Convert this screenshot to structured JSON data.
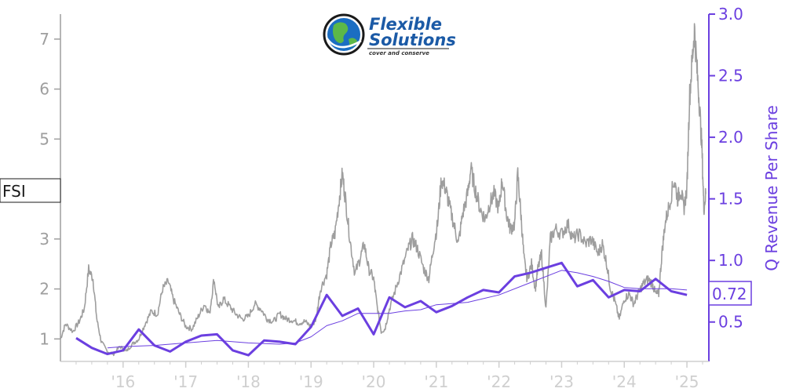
{
  "logo": {
    "line1": "Flexible",
    "line2": "Solutions",
    "tagline": "cover and conserve"
  },
  "colors": {
    "price": "#9e9e9e",
    "revenue": "#6b3fe0",
    "revenue_trend": "#6b3fe0",
    "x_ticks": "#cfcfcf"
  },
  "chart_data": {
    "type": "line",
    "ticker": "FSI",
    "price_marker_label": "FSI",
    "last_revenue_label": "0.72",
    "y_left": {
      "ticks": [
        1,
        2,
        3,
        4,
        5,
        6,
        7
      ],
      "tick_labels": [
        "1",
        "2",
        "3",
        "",
        "5",
        "6",
        "7"
      ],
      "range": [
        0.55,
        7.5
      ]
    },
    "y_right": {
      "label": "Q Revenue Per Share",
      "ticks": [
        0.5,
        1.0,
        1.5,
        2.0,
        2.5,
        3.0
      ],
      "tick_labels": [
        "0.5",
        "1.0",
        "1.5",
        "2.0",
        "2.5",
        "3.0"
      ],
      "range": [
        0.18,
        3.0
      ]
    },
    "x_axis": {
      "tick_labels": [
        "'16",
        "'17",
        "'18",
        "'19",
        "'20",
        "'21",
        "'22",
        "'23",
        "'24",
        "'25"
      ],
      "tick_years": [
        2016,
        2017,
        2018,
        2019,
        2020,
        2021,
        2022,
        2023,
        2024,
        2025
      ],
      "range": [
        2015.0,
        2025.35
      ]
    },
    "series": [
      {
        "role": "price",
        "points": [
          [
            2015.0,
            1.0
          ],
          [
            2015.08,
            1.3
          ],
          [
            2015.2,
            1.15
          ],
          [
            2015.3,
            1.35
          ],
          [
            2015.38,
            1.6
          ],
          [
            2015.45,
            2.4
          ],
          [
            2015.52,
            2.2
          ],
          [
            2015.58,
            1.4
          ],
          [
            2015.65,
            0.95
          ],
          [
            2015.75,
            0.75
          ],
          [
            2015.85,
            0.7
          ],
          [
            2015.95,
            0.85
          ],
          [
            2016.05,
            0.75
          ],
          [
            2016.15,
            0.9
          ],
          [
            2016.25,
            1.0
          ],
          [
            2016.35,
            1.3
          ],
          [
            2016.45,
            1.55
          ],
          [
            2016.55,
            1.5
          ],
          [
            2016.63,
            2.0
          ],
          [
            2016.72,
            2.15
          ],
          [
            2016.8,
            1.8
          ],
          [
            2016.9,
            1.5
          ],
          [
            2017.0,
            1.25
          ],
          [
            2017.1,
            1.2
          ],
          [
            2017.2,
            1.45
          ],
          [
            2017.3,
            1.7
          ],
          [
            2017.38,
            1.5
          ],
          [
            2017.45,
            2.2
          ],
          [
            2017.52,
            1.6
          ],
          [
            2017.6,
            1.8
          ],
          [
            2017.7,
            1.65
          ],
          [
            2017.8,
            1.5
          ],
          [
            2017.9,
            1.4
          ],
          [
            2018.0,
            1.45
          ],
          [
            2018.1,
            1.7
          ],
          [
            2018.2,
            1.6
          ],
          [
            2018.3,
            1.4
          ],
          [
            2018.4,
            1.35
          ],
          [
            2018.5,
            1.5
          ],
          [
            2018.6,
            1.4
          ],
          [
            2018.7,
            1.38
          ],
          [
            2018.8,
            1.32
          ],
          [
            2018.9,
            1.35
          ],
          [
            2019.0,
            1.25
          ],
          [
            2019.08,
            1.4
          ],
          [
            2019.15,
            2.0
          ],
          [
            2019.25,
            2.3
          ],
          [
            2019.32,
            2.9
          ],
          [
            2019.38,
            3.1
          ],
          [
            2019.45,
            3.8
          ],
          [
            2019.5,
            4.3
          ],
          [
            2019.55,
            3.8
          ],
          [
            2019.62,
            3.0
          ],
          [
            2019.7,
            2.3
          ],
          [
            2019.78,
            2.6
          ],
          [
            2019.85,
            2.9
          ],
          [
            2019.92,
            2.4
          ],
          [
            2020.0,
            2.2
          ],
          [
            2020.05,
            1.7
          ],
          [
            2020.12,
            1.15
          ],
          [
            2020.18,
            1.2
          ],
          [
            2020.25,
            1.6
          ],
          [
            2020.35,
            2.0
          ],
          [
            2020.45,
            2.4
          ],
          [
            2020.55,
            2.8
          ],
          [
            2020.62,
            3.0
          ],
          [
            2020.7,
            2.8
          ],
          [
            2020.8,
            2.4
          ],
          [
            2020.88,
            2.2
          ],
          [
            2020.95,
            2.8
          ],
          [
            2021.02,
            3.3
          ],
          [
            2021.08,
            4.2
          ],
          [
            2021.15,
            4.0
          ],
          [
            2021.2,
            3.7
          ],
          [
            2021.28,
            3.3
          ],
          [
            2021.35,
            2.9
          ],
          [
            2021.42,
            3.5
          ],
          [
            2021.5,
            3.9
          ],
          [
            2021.55,
            4.4
          ],
          [
            2021.62,
            4.0
          ],
          [
            2021.7,
            3.6
          ],
          [
            2021.78,
            3.4
          ],
          [
            2021.85,
            3.7
          ],
          [
            2021.92,
            3.9
          ],
          [
            2022.0,
            3.6
          ],
          [
            2022.05,
            4.2
          ],
          [
            2022.12,
            3.5
          ],
          [
            2022.18,
            3.2
          ],
          [
            2022.25,
            3.3
          ],
          [
            2022.3,
            4.3
          ],
          [
            2022.35,
            3.5
          ],
          [
            2022.4,
            2.6
          ],
          [
            2022.45,
            2.2
          ],
          [
            2022.52,
            2.5
          ],
          [
            2022.58,
            2.0
          ],
          [
            2022.62,
            2.4
          ],
          [
            2022.68,
            2.7
          ],
          [
            2022.75,
            1.6
          ],
          [
            2022.82,
            3.0
          ],
          [
            2022.9,
            3.2
          ],
          [
            2023.0,
            3.1
          ],
          [
            2023.1,
            3.3
          ],
          [
            2023.18,
            3.0
          ],
          [
            2023.28,
            3.1
          ],
          [
            2023.38,
            2.9
          ],
          [
            2023.48,
            3.0
          ],
          [
            2023.58,
            2.7
          ],
          [
            2023.65,
            2.9
          ],
          [
            2023.72,
            2.5
          ],
          [
            2023.78,
            2.0
          ],
          [
            2023.85,
            1.75
          ],
          [
            2023.92,
            1.4
          ],
          [
            2024.0,
            1.8
          ],
          [
            2024.08,
            1.9
          ],
          [
            2024.15,
            1.7
          ],
          [
            2024.22,
            1.9
          ],
          [
            2024.3,
            2.1
          ],
          [
            2024.38,
            2.2
          ],
          [
            2024.45,
            2.1
          ],
          [
            2024.5,
            1.9
          ],
          [
            2024.55,
            1.9
          ],
          [
            2024.6,
            2.7
          ],
          [
            2024.65,
            3.3
          ],
          [
            2024.72,
            3.7
          ],
          [
            2024.8,
            4.2
          ],
          [
            2024.85,
            3.8
          ],
          [
            2024.9,
            4.0
          ],
          [
            2024.95,
            3.6
          ],
          [
            2025.0,
            4.0
          ],
          [
            2025.04,
            5.8
          ],
          [
            2025.08,
            6.5
          ],
          [
            2025.12,
            7.2
          ],
          [
            2025.16,
            6.4
          ],
          [
            2025.2,
            5.7
          ],
          [
            2025.24,
            4.8
          ],
          [
            2025.27,
            3.6
          ],
          [
            2025.3,
            3.9
          ]
        ]
      },
      {
        "role": "revenue",
        "points": [
          [
            2015.25,
            0.37
          ],
          [
            2015.5,
            0.29
          ],
          [
            2015.75,
            0.24
          ],
          [
            2016.0,
            0.27
          ],
          [
            2016.25,
            0.44
          ],
          [
            2016.5,
            0.31
          ],
          [
            2016.75,
            0.26
          ],
          [
            2017.0,
            0.34
          ],
          [
            2017.25,
            0.39
          ],
          [
            2017.5,
            0.4
          ],
          [
            2017.75,
            0.27
          ],
          [
            2018.0,
            0.23
          ],
          [
            2018.25,
            0.35
          ],
          [
            2018.5,
            0.34
          ],
          [
            2018.75,
            0.32
          ],
          [
            2019.0,
            0.46
          ],
          [
            2019.25,
            0.72
          ],
          [
            2019.5,
            0.55
          ],
          [
            2019.75,
            0.61
          ],
          [
            2020.0,
            0.4
          ],
          [
            2020.25,
            0.7
          ],
          [
            2020.5,
            0.62
          ],
          [
            2020.75,
            0.67
          ],
          [
            2021.0,
            0.58
          ],
          [
            2021.25,
            0.63
          ],
          [
            2021.5,
            0.7
          ],
          [
            2021.75,
            0.76
          ],
          [
            2022.0,
            0.74
          ],
          [
            2022.25,
            0.87
          ],
          [
            2022.5,
            0.9
          ],
          [
            2022.75,
            0.94
          ],
          [
            2023.0,
            0.98
          ],
          [
            2023.25,
            0.79
          ],
          [
            2023.5,
            0.84
          ],
          [
            2023.75,
            0.7
          ],
          [
            2024.0,
            0.76
          ],
          [
            2024.25,
            0.75
          ],
          [
            2024.5,
            0.85
          ],
          [
            2024.75,
            0.75
          ],
          [
            2025.0,
            0.72
          ]
        ]
      },
      {
        "role": "revenue_trend",
        "points": [
          [
            2015.75,
            0.29
          ],
          [
            2016.0,
            0.3
          ],
          [
            2016.5,
            0.31
          ],
          [
            2017.0,
            0.33
          ],
          [
            2017.5,
            0.35
          ],
          [
            2018.0,
            0.33
          ],
          [
            2018.5,
            0.32
          ],
          [
            2018.75,
            0.33
          ],
          [
            2019.0,
            0.38
          ],
          [
            2019.25,
            0.47
          ],
          [
            2019.5,
            0.51
          ],
          [
            2019.75,
            0.57
          ],
          [
            2020.0,
            0.57
          ],
          [
            2020.25,
            0.57
          ],
          [
            2020.5,
            0.59
          ],
          [
            2020.75,
            0.6
          ],
          [
            2021.0,
            0.64
          ],
          [
            2021.5,
            0.66
          ],
          [
            2022.0,
            0.72
          ],
          [
            2022.5,
            0.82
          ],
          [
            2023.0,
            0.92
          ],
          [
            2023.25,
            0.9
          ],
          [
            2023.5,
            0.87
          ],
          [
            2023.75,
            0.83
          ],
          [
            2024.0,
            0.78
          ],
          [
            2024.25,
            0.77
          ],
          [
            2024.5,
            0.77
          ],
          [
            2024.75,
            0.77
          ],
          [
            2025.0,
            0.76
          ]
        ]
      }
    ]
  }
}
